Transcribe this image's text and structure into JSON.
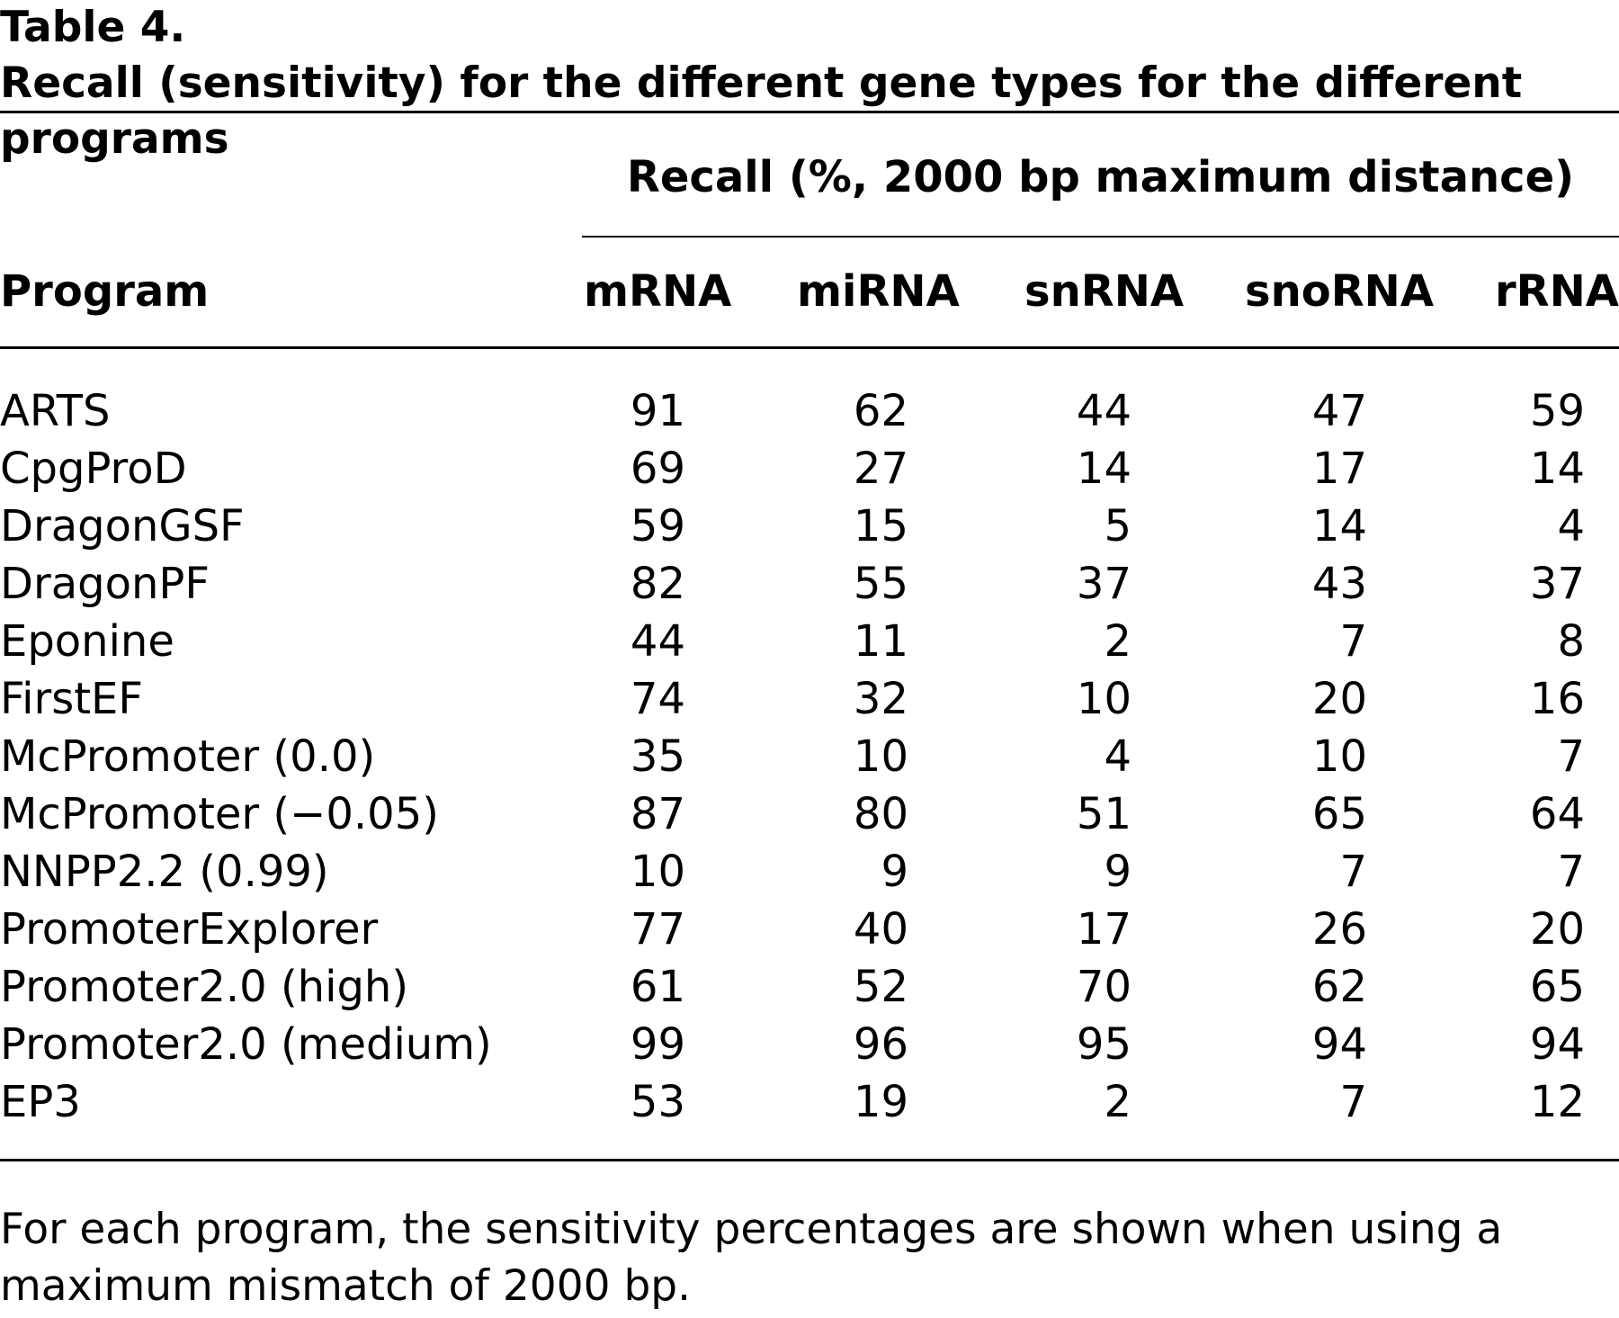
{
  "table": {
    "label": "Table 4.",
    "title": "Recall (sensitivity) for the different gene types for the different programs",
    "group_header": "Recall (%, 2000 bp maximum distance)",
    "stub_header": "Program",
    "columns": [
      "mRNA",
      "miRNA",
      "snRNA",
      "snoRNA",
      "rRNA"
    ],
    "rows": [
      {
        "program": "ARTS",
        "values": [
          "91",
          "62",
          "44",
          "47",
          "59"
        ]
      },
      {
        "program": "CpgProD",
        "values": [
          "69",
          "27",
          "14",
          "17",
          "14"
        ]
      },
      {
        "program": "DragonGSF",
        "values": [
          "59",
          "15",
          "5",
          "14",
          "4"
        ]
      },
      {
        "program": "DragonPF",
        "values": [
          "82",
          "55",
          "37",
          "43",
          "37"
        ]
      },
      {
        "program": "Eponine",
        "values": [
          "44",
          "11",
          "2",
          "7",
          "8"
        ]
      },
      {
        "program": "FirstEF",
        "values": [
          "74",
          "32",
          "10",
          "20",
          "16"
        ]
      },
      {
        "program": "McPromoter (0.0)",
        "values": [
          "35",
          "10",
          "4",
          "10",
          "7"
        ]
      },
      {
        "program": "McPromoter (−0.05)",
        "values": [
          "87",
          "80",
          "51",
          "65",
          "64"
        ]
      },
      {
        "program": "NNPP2.2 (0.99)",
        "values": [
          "10",
          "9",
          "9",
          "7",
          "7"
        ]
      },
      {
        "program": "PromoterExplorer",
        "values": [
          "77",
          "40",
          "17",
          "26",
          "20"
        ]
      },
      {
        "program": "Promoter2.0 (high)",
        "values": [
          "61",
          "52",
          "70",
          "62",
          "65"
        ]
      },
      {
        "program": "Promoter2.0 (medium)",
        "values": [
          "99",
          "96",
          "95",
          "94",
          "94"
        ]
      },
      {
        "program": "EP3",
        "values": [
          "53",
          "19",
          "2",
          "7",
          "12"
        ]
      }
    ],
    "footnote": "For each program, the sensitivity percentages are shown when using a maximum mismatch of 2000 bp."
  }
}
